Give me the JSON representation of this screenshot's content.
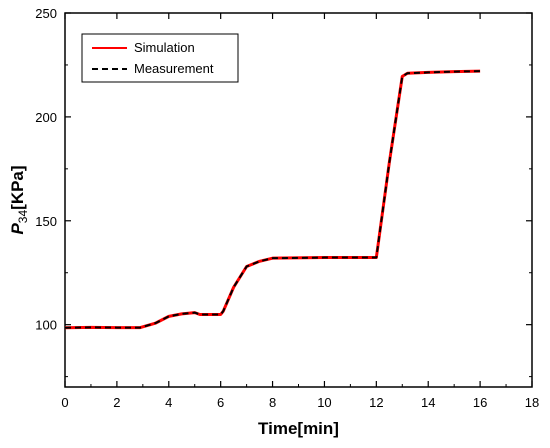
{
  "chart_data": {
    "type": "line",
    "xlabel": "Time[min]",
    "ylabel": {
      "italic": "P",
      "sub": "34",
      "unit": "[KPa]"
    },
    "xlim": [
      0,
      18
    ],
    "ylim": [
      70,
      250
    ],
    "xticks": [
      0,
      2,
      4,
      6,
      8,
      10,
      12,
      14,
      16,
      18
    ],
    "yticks": [
      100,
      150,
      200,
      250
    ],
    "grid": false,
    "legend_position": "top-left",
    "series": [
      {
        "name": "Simulation",
        "color": "#ff0000",
        "style": "solid",
        "x": [
          0,
          1,
          2,
          2.9,
          3.5,
          4,
          4.5,
          5,
          5.2,
          6,
          6.1,
          6.5,
          7,
          7.5,
          8,
          10,
          12,
          12.5,
          13,
          13.2,
          14,
          15,
          16
        ],
        "y": [
          98.5,
          98.7,
          98.6,
          98.6,
          100.8,
          104,
          105.2,
          105.8,
          104.9,
          104.9,
          106.5,
          118,
          128,
          130.5,
          132,
          132.3,
          132.3,
          178,
          219.5,
          221,
          221.4,
          221.8,
          222
        ]
      },
      {
        "name": "Measurement",
        "color": "#000000",
        "style": "dashed",
        "x": [
          0,
          1,
          2,
          2.9,
          3.5,
          4,
          4.5,
          5,
          5.2,
          6,
          6.1,
          6.5,
          7,
          7.5,
          8,
          10,
          12,
          12.5,
          13,
          13.2,
          14,
          15,
          16
        ],
        "y": [
          98.5,
          98.7,
          98.6,
          98.6,
          100.8,
          104,
          105.2,
          105.8,
          104.9,
          104.9,
          106.5,
          118,
          128,
          130.5,
          132,
          132.3,
          132.3,
          178,
          219.5,
          221,
          221.4,
          221.8,
          222
        ]
      }
    ]
  }
}
